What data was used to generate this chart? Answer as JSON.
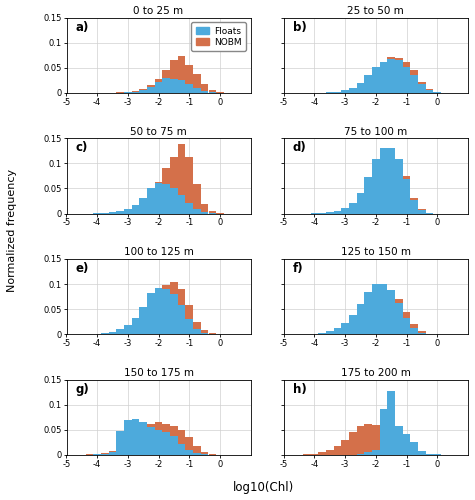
{
  "panels": [
    {
      "label": "a)",
      "title": "0 to 25 m",
      "nobm_vals": [
        0.0,
        0.0,
        0.0,
        0.0,
        0.0,
        0.0,
        0.001,
        0.002,
        0.004,
        0.008,
        0.016,
        0.028,
        0.045,
        0.065,
        0.073,
        0.055,
        0.038,
        0.018,
        0.006,
        0.002,
        0.0
      ],
      "floats_vals": [
        0.0,
        0.0,
        0.0,
        0.0,
        0.0,
        0.0,
        0.0,
        0.001,
        0.002,
        0.005,
        0.012,
        0.022,
        0.03,
        0.028,
        0.025,
        0.018,
        0.01,
        0.004,
        0.001,
        0.0,
        0.0
      ]
    },
    {
      "label": "b)",
      "title": "25 to 50 m",
      "nobm_vals": [
        0.0,
        0.0,
        0.0,
        0.0,
        0.0,
        0.001,
        0.002,
        0.004,
        0.008,
        0.016,
        0.028,
        0.045,
        0.062,
        0.072,
        0.07,
        0.062,
        0.045,
        0.022,
        0.008,
        0.002,
        0.0
      ],
      "floats_vals": [
        0.0,
        0.0,
        0.0,
        0.0,
        0.0,
        0.001,
        0.002,
        0.005,
        0.01,
        0.02,
        0.035,
        0.052,
        0.062,
        0.068,
        0.065,
        0.052,
        0.035,
        0.018,
        0.006,
        0.001,
        0.0
      ]
    },
    {
      "label": "c)",
      "title": "50 to 75 m",
      "nobm_vals": [
        0.0,
        0.0,
        0.0,
        0.0,
        0.001,
        0.001,
        0.003,
        0.006,
        0.012,
        0.022,
        0.04,
        0.062,
        0.09,
        0.112,
        0.138,
        0.112,
        0.058,
        0.02,
        0.005,
        0.001,
        0.0
      ],
      "floats_vals": [
        0.0,
        0.0,
        0.0,
        0.001,
        0.001,
        0.003,
        0.005,
        0.01,
        0.018,
        0.032,
        0.05,
        0.06,
        0.058,
        0.05,
        0.038,
        0.022,
        0.01,
        0.003,
        0.001,
        0.0,
        0.0
      ]
    },
    {
      "label": "d)",
      "title": "75 to 100 m",
      "nobm_vals": [
        0.0,
        0.0,
        0.0,
        0.0,
        0.001,
        0.001,
        0.003,
        0.006,
        0.012,
        0.022,
        0.04,
        0.068,
        0.098,
        0.118,
        0.108,
        0.075,
        0.032,
        0.01,
        0.002,
        0.0,
        0.0
      ],
      "floats_vals": [
        0.0,
        0.0,
        0.0,
        0.001,
        0.001,
        0.003,
        0.006,
        0.012,
        0.022,
        0.042,
        0.072,
        0.108,
        0.13,
        0.13,
        0.108,
        0.068,
        0.028,
        0.008,
        0.001,
        0.0,
        0.0
      ]
    },
    {
      "label": "e)",
      "title": "100 to 125 m",
      "nobm_vals": [
        0.0,
        0.0,
        0.0,
        0.0,
        0.001,
        0.002,
        0.004,
        0.008,
        0.018,
        0.035,
        0.058,
        0.08,
        0.098,
        0.105,
        0.09,
        0.058,
        0.025,
        0.008,
        0.002,
        0.0,
        0.0
      ],
      "floats_vals": [
        0.0,
        0.0,
        0.0,
        0.001,
        0.002,
        0.005,
        0.01,
        0.018,
        0.032,
        0.055,
        0.082,
        0.092,
        0.09,
        0.08,
        0.058,
        0.03,
        0.01,
        0.003,
        0.001,
        0.0,
        0.0
      ]
    },
    {
      "label": "f)",
      "title": "125 to 150 m",
      "nobm_vals": [
        0.0,
        0.0,
        0.0,
        0.001,
        0.002,
        0.004,
        0.008,
        0.015,
        0.028,
        0.045,
        0.065,
        0.082,
        0.09,
        0.088,
        0.07,
        0.045,
        0.02,
        0.006,
        0.001,
        0.0,
        0.0
      ],
      "floats_vals": [
        0.0,
        0.0,
        0.0,
        0.001,
        0.003,
        0.006,
        0.012,
        0.022,
        0.038,
        0.06,
        0.085,
        0.1,
        0.1,
        0.088,
        0.062,
        0.032,
        0.012,
        0.003,
        0.001,
        0.0,
        0.0
      ]
    },
    {
      "label": "g)",
      "title": "150 to 175 m",
      "nobm_vals": [
        0.0,
        0.0,
        0.001,
        0.002,
        0.004,
        0.008,
        0.015,
        0.025,
        0.038,
        0.052,
        0.062,
        0.065,
        0.062,
        0.058,
        0.05,
        0.035,
        0.018,
        0.006,
        0.002,
        0.0,
        0.0
      ],
      "floats_vals": [
        0.0,
        0.0,
        0.0,
        0.001,
        0.002,
        0.005,
        0.048,
        0.07,
        0.072,
        0.065,
        0.055,
        0.05,
        0.045,
        0.038,
        0.022,
        0.01,
        0.003,
        0.001,
        0.0,
        0.0,
        0.0
      ]
    },
    {
      "label": "h)",
      "title": "175 to 200 m",
      "nobm_vals": [
        0.0,
        0.0,
        0.001,
        0.002,
        0.005,
        0.01,
        0.018,
        0.03,
        0.045,
        0.058,
        0.062,
        0.06,
        0.055,
        0.05,
        0.04,
        0.028,
        0.015,
        0.005,
        0.002,
        0.0,
        0.0
      ],
      "floats_vals": [
        0.0,
        0.0,
        0.0,
        0.0,
        0.0,
        0.0,
        0.0,
        0.0,
        0.0,
        0.002,
        0.005,
        0.01,
        0.092,
        0.128,
        0.058,
        0.042,
        0.025,
        0.008,
        0.002,
        0.001,
        0.0
      ]
    }
  ],
  "bin_centers": [
    -4.75,
    -4.5,
    -4.25,
    -4.0,
    -3.75,
    -3.5,
    -3.25,
    -3.0,
    -2.75,
    -2.5,
    -2.25,
    -2.0,
    -1.75,
    -1.5,
    -1.25,
    -1.0,
    -0.75,
    -0.5,
    -0.25,
    0.0,
    0.25
  ],
  "floats_color": "#4DAADC",
  "nobm_color": "#D4704A",
  "bar_width": 0.245,
  "xlim": [
    -5,
    1
  ],
  "ylim": [
    0,
    0.15
  ],
  "xticks": [
    -5,
    -4,
    -3,
    -2,
    -1,
    0
  ],
  "yticks": [
    0,
    0.05,
    0.1,
    0.15
  ],
  "ytick_labels": [
    "0",
    "0.05",
    "0.1",
    "0.15"
  ],
  "xlabel": "log10(Chl)",
  "ylabel": "Normalized frequency",
  "grid_color": "#d0d0d0",
  "legend_labels": [
    "Floats",
    "NOBM"
  ]
}
